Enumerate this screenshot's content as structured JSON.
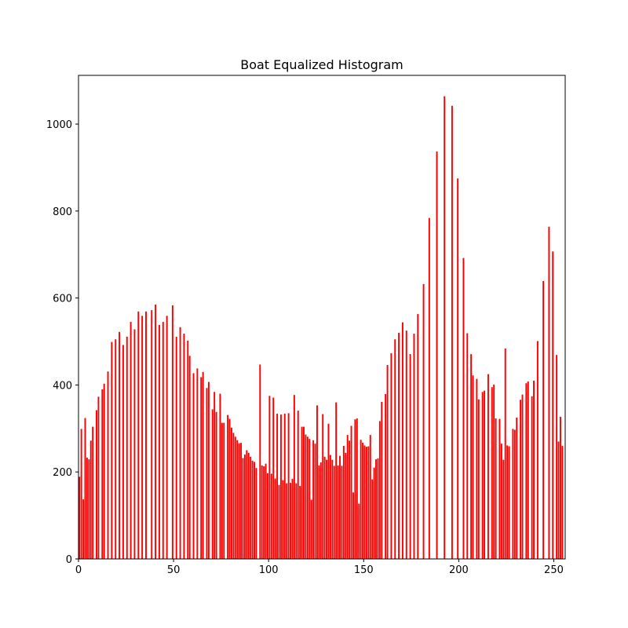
{
  "chart_data": {
    "type": "bar",
    "title": "Boat Equalized Histogram",
    "xlabel": "",
    "ylabel": "",
    "xlim": [
      0,
      256
    ],
    "ylim": [
      0,
      1112
    ],
    "xticks": [
      0,
      50,
      100,
      150,
      200,
      250
    ],
    "yticks": [
      0,
      200,
      400,
      600,
      800,
      1000
    ],
    "bar_color": "#ff0000",
    "frame_color": "#000000",
    "grid": false,
    "bars": [
      {
        "x": 0,
        "y": 189
      },
      {
        "x": 1,
        "y": 299
      },
      {
        "x": 2,
        "y": 137
      },
      {
        "x": 3,
        "y": 324
      },
      {
        "x": 4,
        "y": 233
      },
      {
        "x": 5,
        "y": 229
      },
      {
        "x": 6,
        "y": 272
      },
      {
        "x": 7,
        "y": 304
      },
      {
        "x": 9,
        "y": 342
      },
      {
        "x": 10,
        "y": 373
      },
      {
        "x": 12,
        "y": 390
      },
      {
        "x": 13,
        "y": 403
      },
      {
        "x": 15,
        "y": 431
      },
      {
        "x": 17,
        "y": 499
      },
      {
        "x": 19,
        "y": 505
      },
      {
        "x": 21,
        "y": 522
      },
      {
        "x": 23,
        "y": 492
      },
      {
        "x": 25,
        "y": 511
      },
      {
        "x": 27,
        "y": 545
      },
      {
        "x": 29,
        "y": 528
      },
      {
        "x": 31,
        "y": 569
      },
      {
        "x": 33,
        "y": 559
      },
      {
        "x": 35,
        "y": 569
      },
      {
        "x": 38,
        "y": 572
      },
      {
        "x": 40,
        "y": 585
      },
      {
        "x": 42,
        "y": 538
      },
      {
        "x": 44,
        "y": 545
      },
      {
        "x": 46,
        "y": 559
      },
      {
        "x": 49,
        "y": 583
      },
      {
        "x": 51,
        "y": 511
      },
      {
        "x": 53,
        "y": 533
      },
      {
        "x": 55,
        "y": 518
      },
      {
        "x": 57,
        "y": 502
      },
      {
        "x": 58,
        "y": 467
      },
      {
        "x": 60,
        "y": 427
      },
      {
        "x": 62,
        "y": 438
      },
      {
        "x": 64,
        "y": 418
      },
      {
        "x": 65,
        "y": 430
      },
      {
        "x": 67,
        "y": 393
      },
      {
        "x": 68,
        "y": 407
      },
      {
        "x": 70,
        "y": 344
      },
      {
        "x": 71,
        "y": 384
      },
      {
        "x": 72,
        "y": 338
      },
      {
        "x": 74,
        "y": 380
      },
      {
        "x": 75,
        "y": 313
      },
      {
        "x": 76,
        "y": 313
      },
      {
        "x": 78,
        "y": 331
      },
      {
        "x": 79,
        "y": 322
      },
      {
        "x": 80,
        "y": 302
      },
      {
        "x": 81,
        "y": 290
      },
      {
        "x": 82,
        "y": 281
      },
      {
        "x": 83,
        "y": 273
      },
      {
        "x": 84,
        "y": 266
      },
      {
        "x": 85,
        "y": 267
      },
      {
        "x": 86,
        "y": 232
      },
      {
        "x": 87,
        "y": 240
      },
      {
        "x": 88,
        "y": 250
      },
      {
        "x": 89,
        "y": 244
      },
      {
        "x": 90,
        "y": 235
      },
      {
        "x": 91,
        "y": 226
      },
      {
        "x": 92,
        "y": 223
      },
      {
        "x": 93,
        "y": 209
      },
      {
        "x": 95,
        "y": 447
      },
      {
        "x": 96,
        "y": 215
      },
      {
        "x": 97,
        "y": 213
      },
      {
        "x": 98,
        "y": 219
      },
      {
        "x": 99,
        "y": 197
      },
      {
        "x": 100,
        "y": 375
      },
      {
        "x": 101,
        "y": 196
      },
      {
        "x": 102,
        "y": 371
      },
      {
        "x": 103,
        "y": 185
      },
      {
        "x": 104,
        "y": 334
      },
      {
        "x": 105,
        "y": 170
      },
      {
        "x": 106,
        "y": 332
      },
      {
        "x": 107,
        "y": 181
      },
      {
        "x": 108,
        "y": 334
      },
      {
        "x": 109,
        "y": 174
      },
      {
        "x": 110,
        "y": 335
      },
      {
        "x": 111,
        "y": 175
      },
      {
        "x": 112,
        "y": 184
      },
      {
        "x": 113,
        "y": 377
      },
      {
        "x": 114,
        "y": 174
      },
      {
        "x": 115,
        "y": 341
      },
      {
        "x": 116,
        "y": 168
      },
      {
        "x": 117,
        "y": 304
      },
      {
        "x": 118,
        "y": 304
      },
      {
        "x": 119,
        "y": 286
      },
      {
        "x": 120,
        "y": 281
      },
      {
        "x": 121,
        "y": 276
      },
      {
        "x": 122,
        "y": 136
      },
      {
        "x": 123,
        "y": 273
      },
      {
        "x": 124,
        "y": 265
      },
      {
        "x": 125,
        "y": 353
      },
      {
        "x": 126,
        "y": 215
      },
      {
        "x": 127,
        "y": 222
      },
      {
        "x": 128,
        "y": 333
      },
      {
        "x": 129,
        "y": 235
      },
      {
        "x": 130,
        "y": 228
      },
      {
        "x": 131,
        "y": 311
      },
      {
        "x": 132,
        "y": 239
      },
      {
        "x": 133,
        "y": 228
      },
      {
        "x": 134,
        "y": 214
      },
      {
        "x": 135,
        "y": 360
      },
      {
        "x": 136,
        "y": 215
      },
      {
        "x": 137,
        "y": 237
      },
      {
        "x": 138,
        "y": 214
      },
      {
        "x": 139,
        "y": 260
      },
      {
        "x": 140,
        "y": 244
      },
      {
        "x": 141,
        "y": 285
      },
      {
        "x": 142,
        "y": 272
      },
      {
        "x": 143,
        "y": 306
      },
      {
        "x": 144,
        "y": 153
      },
      {
        "x": 145,
        "y": 321
      },
      {
        "x": 146,
        "y": 323
      },
      {
        "x": 147,
        "y": 127
      },
      {
        "x": 148,
        "y": 274
      },
      {
        "x": 149,
        "y": 267
      },
      {
        "x": 150,
        "y": 261
      },
      {
        "x": 151,
        "y": 258
      },
      {
        "x": 152,
        "y": 259
      },
      {
        "x": 153,
        "y": 285
      },
      {
        "x": 154,
        "y": 183
      },
      {
        "x": 155,
        "y": 210
      },
      {
        "x": 156,
        "y": 229
      },
      {
        "x": 157,
        "y": 231
      },
      {
        "x": 158,
        "y": 317
      },
      {
        "x": 159,
        "y": 361
      },
      {
        "x": 161,
        "y": 379
      },
      {
        "x": 162,
        "y": 446
      },
      {
        "x": 164,
        "y": 473
      },
      {
        "x": 166,
        "y": 505
      },
      {
        "x": 168,
        "y": 520
      },
      {
        "x": 170,
        "y": 544
      },
      {
        "x": 172,
        "y": 525
      },
      {
        "x": 174,
        "y": 471
      },
      {
        "x": 176,
        "y": 518
      },
      {
        "x": 178,
        "y": 563
      },
      {
        "x": 181,
        "y": 632
      },
      {
        "x": 184,
        "y": 784
      },
      {
        "x": 188,
        "y": 937
      },
      {
        "x": 192,
        "y": 1064
      },
      {
        "x": 196,
        "y": 1042
      },
      {
        "x": 199,
        "y": 875
      },
      {
        "x": 202,
        "y": 692
      },
      {
        "x": 204,
        "y": 519
      },
      {
        "x": 206,
        "y": 471
      },
      {
        "x": 207,
        "y": 422
      },
      {
        "x": 209,
        "y": 414
      },
      {
        "x": 210,
        "y": 367
      },
      {
        "x": 212,
        "y": 384
      },
      {
        "x": 213,
        "y": 387
      },
      {
        "x": 215,
        "y": 425
      },
      {
        "x": 217,
        "y": 395
      },
      {
        "x": 218,
        "y": 401
      },
      {
        "x": 219,
        "y": 323
      },
      {
        "x": 221,
        "y": 322
      },
      {
        "x": 222,
        "y": 265
      },
      {
        "x": 223,
        "y": 228
      },
      {
        "x": 224,
        "y": 484
      },
      {
        "x": 225,
        "y": 261
      },
      {
        "x": 226,
        "y": 259
      },
      {
        "x": 228,
        "y": 299
      },
      {
        "x": 229,
        "y": 297
      },
      {
        "x": 230,
        "y": 325
      },
      {
        "x": 232,
        "y": 366
      },
      {
        "x": 233,
        "y": 378
      },
      {
        "x": 235,
        "y": 404
      },
      {
        "x": 236,
        "y": 408
      },
      {
        "x": 238,
        "y": 374
      },
      {
        "x": 239,
        "y": 410
      },
      {
        "x": 241,
        "y": 501
      },
      {
        "x": 244,
        "y": 639
      },
      {
        "x": 247,
        "y": 764
      },
      {
        "x": 249,
        "y": 707
      },
      {
        "x": 251,
        "y": 469
      },
      {
        "x": 252,
        "y": 270
      },
      {
        "x": 253,
        "y": 327
      },
      {
        "x": 254,
        "y": 260
      }
    ]
  }
}
